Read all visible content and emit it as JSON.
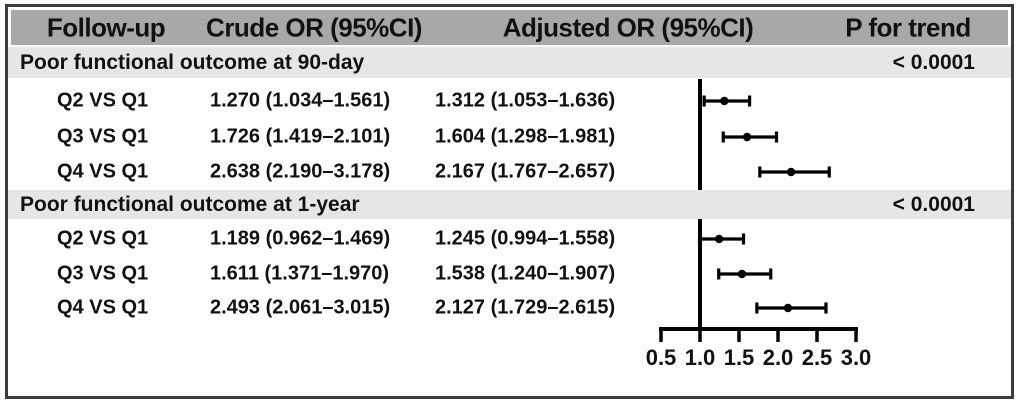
{
  "colors": {
    "header_bg": "#a8a8a8",
    "section_bg": "#e6e6e6",
    "border": "#3b3b3b",
    "text": "#111111",
    "plot": "#000000"
  },
  "chart_data": {
    "type": "forest",
    "columns": [
      "Follow-up",
      "Crude OR (95%CI)",
      "Adjusted OR (95%CI)",
      "P for trend"
    ],
    "x_ticks": [
      0.5,
      1.0,
      1.5,
      2.0,
      2.5,
      3.0
    ],
    "xlim": [
      0.5,
      3.0
    ],
    "ref_line": 1.0,
    "plotted_estimate": "adjusted",
    "legend": "none",
    "grid": false,
    "groups": [
      {
        "label": "Poor functional outcome at 90-day",
        "p_for_trend": "< 0.0001",
        "rows": [
          {
            "label": "Q2 VS Q1",
            "crude_text": "1.270 (1.034–1.561)",
            "adjusted_text": "1.312 (1.053–1.636)",
            "crude_or": 1.27,
            "crude_lo": 1.034,
            "crude_hi": 1.561,
            "adjusted_or": 1.312,
            "adjusted_lo": 1.053,
            "adjusted_hi": 1.636
          },
          {
            "label": "Q3 VS Q1",
            "crude_text": "1.726 (1.419–2.101)",
            "adjusted_text": "1.604 (1.298–1.981)",
            "crude_or": 1.726,
            "crude_lo": 1.419,
            "crude_hi": 2.101,
            "adjusted_or": 1.604,
            "adjusted_lo": 1.298,
            "adjusted_hi": 1.981
          },
          {
            "label": "Q4 VS Q1",
            "crude_text": "2.638 (2.190–3.178)",
            "adjusted_text": "2.167 (1.767–2.657)",
            "crude_or": 2.638,
            "crude_lo": 2.19,
            "crude_hi": 3.178,
            "adjusted_or": 2.167,
            "adjusted_lo": 1.767,
            "adjusted_hi": 2.657
          }
        ]
      },
      {
        "label": "Poor functional outcome at 1-year",
        "p_for_trend": "< 0.0001",
        "rows": [
          {
            "label": "Q2 VS Q1",
            "crude_text": "1.189 (0.962–1.469)",
            "adjusted_text": "1.245 (0.994–1.558)",
            "crude_or": 1.189,
            "crude_lo": 0.962,
            "crude_hi": 1.469,
            "adjusted_or": 1.245,
            "adjusted_lo": 0.994,
            "adjusted_hi": 1.558
          },
          {
            "label": "Q3 VS Q1",
            "crude_text": "1.611 (1.371–1.970)",
            "adjusted_text": "1.538 (1.240–1.907)",
            "crude_or": 1.611,
            "crude_lo": 1.371,
            "crude_hi": 1.97,
            "adjusted_or": 1.538,
            "adjusted_lo": 1.24,
            "adjusted_hi": 1.907
          },
          {
            "label": "Q4 VS Q1",
            "crude_text": "2.493 (2.061–3.015)",
            "adjusted_text": "2.127 (1.729–2.615)",
            "crude_or": 2.493,
            "crude_lo": 2.061,
            "crude_hi": 3.015,
            "adjusted_or": 2.127,
            "adjusted_lo": 1.729,
            "adjusted_hi": 2.615
          }
        ]
      }
    ]
  }
}
